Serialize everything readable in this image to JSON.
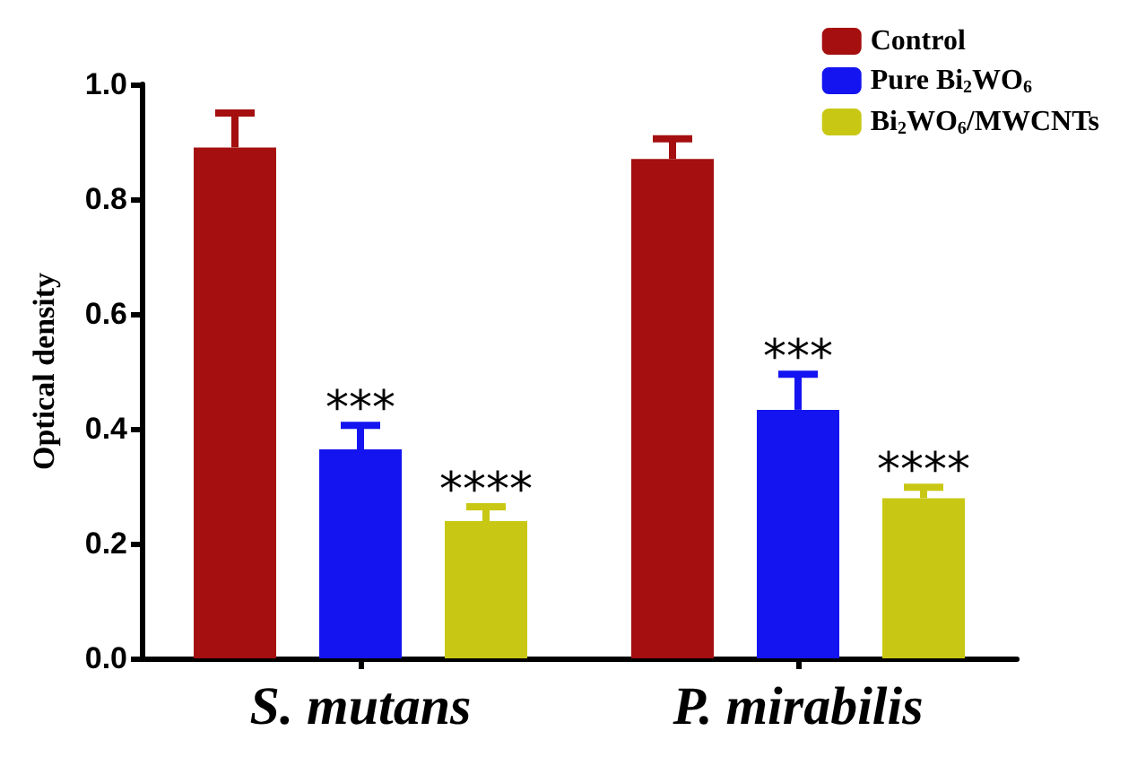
{
  "chart_data": {
    "type": "bar",
    "ylabel": "Optical density",
    "categories": [
      "S. mutans",
      "P. mirabilis"
    ],
    "series": [
      {
        "name": "Control",
        "color": "#a50f0f",
        "values": [
          0.89,
          0.87
        ],
        "errors": [
          [
            0.89,
            0.95
          ],
          [
            0.87,
            0.905
          ]
        ]
      },
      {
        "name": "Pure Bi$_{2}$WO$_{6}$",
        "color": "#1414f0",
        "values": [
          0.364,
          0.433
        ],
        "errors": [
          [
            0.364,
            0.406
          ],
          [
            0.433,
            0.495
          ]
        ],
        "value_labels": [
          "***",
          "***"
        ]
      },
      {
        "name": "Bi$_{2}$WO$_{6}$/MWCNTs",
        "color": "#c8c814",
        "values": [
          0.239,
          0.279
        ],
        "errors": [
          [
            0.239,
            0.264
          ],
          [
            0.279,
            0.298
          ]
        ],
        "value_labels": [
          "****",
          "****"
        ]
      }
    ],
    "ylim": [
      0,
      1
    ],
    "yticks": [
      {
        "value": 0,
        "label": "0.0"
      },
      {
        "value": 0.2,
        "label": "0.2"
      },
      {
        "value": 0.4,
        "label": "0.4"
      },
      {
        "value": 0.6,
        "label": "0.6"
      },
      {
        "value": 0.8,
        "label": "0.8"
      },
      {
        "value": 1,
        "label": "1.0"
      }
    ],
    "grid": false,
    "legend": "top right"
  }
}
